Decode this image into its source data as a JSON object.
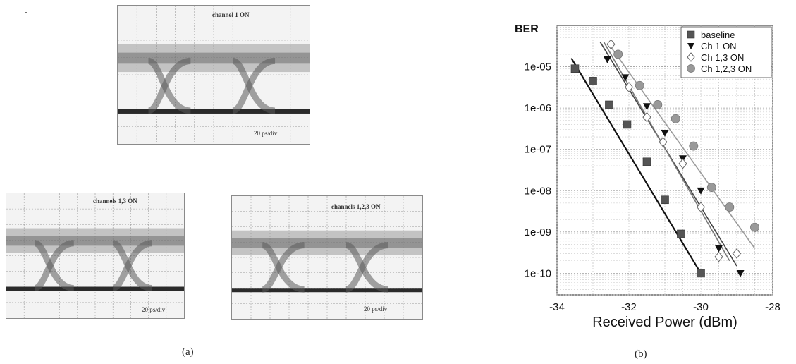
{
  "panel_a": {
    "label": "(a)",
    "eyes": [
      {
        "title": "channel 1 ON",
        "scale": "20 ps/div"
      },
      {
        "title": "channels 1,3 ON",
        "scale": "20 ps/div"
      },
      {
        "title": "channels 1,2,3 ON",
        "scale": "20 ps/div"
      }
    ]
  },
  "panel_b": {
    "label": "(b)"
  },
  "chart_data": {
    "type": "scatter",
    "title": "",
    "ylabel": "BER",
    "xlabel": "Received Power (dBm)",
    "y_scale": "log",
    "xlim": [
      -34,
      -28
    ],
    "ylim": [
      3e-11,
      0.0001
    ],
    "grid": true,
    "legend_position": "top-right",
    "x_ticks": [
      -34,
      -32,
      -30,
      -28
    ],
    "x_tick_labels": [
      "-34",
      "-32",
      "-30",
      "-28"
    ],
    "y_ticks": [
      1e-10,
      1e-09,
      1e-08,
      1e-07,
      1e-06,
      1e-05
    ],
    "y_tick_labels": [
      "1e-10",
      "1e-09",
      "1e-08",
      "1e-07",
      "1e-06",
      "1e-05"
    ],
    "series": [
      {
        "name": "baseline",
        "marker": "square",
        "color": "#555555",
        "x": [
          -33.5,
          -33.0,
          -32.55,
          -32.05,
          -31.5,
          -31.0,
          -30.55,
          -30.0
        ],
        "y": [
          9e-06,
          4.5e-06,
          1.2e-06,
          4e-07,
          5e-08,
          6e-09,
          9e-10,
          1e-10
        ],
        "fit": {
          "x": [
            -33.6,
            -30.0
          ],
          "y": [
            1.6e-05,
            1e-10
          ],
          "color": "#111111"
        }
      },
      {
        "name": "Ch 1 ON",
        "marker": "triangle-down",
        "color": "#111111",
        "x": [
          -32.6,
          -32.1,
          -31.5,
          -31.0,
          -30.5,
          -30.0,
          -29.5,
          -28.9
        ],
        "y": [
          1.5e-05,
          5.5e-06,
          1.1e-06,
          2.5e-07,
          6e-08,
          1e-08,
          4e-10,
          1e-10
        ],
        "fit": {
          "x": [
            -32.8,
            -29.0
          ],
          "y": [
            4e-05,
            1.5e-10
          ],
          "color": "#444444"
        }
      },
      {
        "name": "Ch 1,3 ON",
        "marker": "diamond",
        "color": "#ffffff",
        "x": [
          -32.5,
          -32.0,
          -31.5,
          -31.05,
          -30.5,
          -30.0,
          -29.5,
          -29.0
        ],
        "y": [
          3.5e-05,
          3.2e-06,
          6e-07,
          1.5e-07,
          4.5e-08,
          4e-09,
          2.5e-10,
          3e-10
        ],
        "fit": {
          "x": [
            -32.7,
            -29.2
          ],
          "y": [
            4e-05,
            2e-10
          ],
          "color": "#777777"
        }
      },
      {
        "name": "Ch 1,2,3 ON",
        "marker": "circle",
        "color": "#999999",
        "x": [
          -32.3,
          -31.7,
          -31.2,
          -30.7,
          -30.2,
          -29.7,
          -29.2,
          -28.5
        ],
        "y": [
          2e-05,
          3.5e-06,
          1.2e-06,
          5.5e-07,
          1.2e-07,
          1.2e-08,
          4e-09,
          1.3e-09
        ],
        "fit": {
          "x": [
            -32.5,
            -28.5
          ],
          "y": [
            3e-05,
            4e-10
          ],
          "color": "#999999"
        }
      }
    ]
  }
}
